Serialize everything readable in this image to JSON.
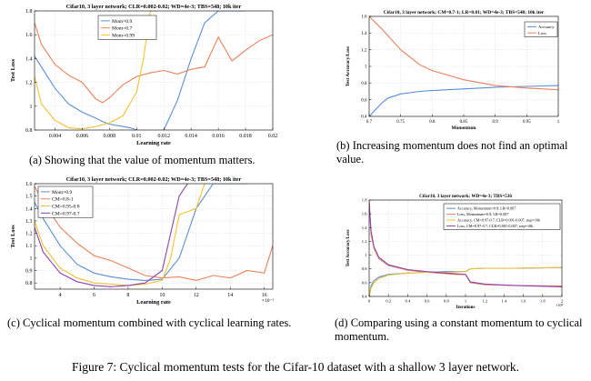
{
  "figure_caption": "Figure 7: Cyclical momentum tests for the Cifar-10 dataset with a shallow 3 layer network.",
  "captions": {
    "a": "(a) Showing that the value of momentum matters.",
    "b": "(b) Increasing momentum does not find an optimal value.",
    "c": "(c) Cyclical momentum combined with cyclical learning rates.",
    "d": "(d) Comparing using a constant momentum to cyclical momentum."
  },
  "chart_data": [
    {
      "id": "a",
      "type": "line",
      "title": "Cifar10, 3 layer network; CLR=0.002-0.02; WD=4e-3; TBS=548; 10k iter",
      "xlabel": "Learning rate",
      "ylabel": "Test Loss",
      "xlim": [
        0.0025,
        0.02
      ],
      "ylim": [
        0.8,
        1.8
      ],
      "xticks": [
        0.004,
        0.006,
        0.008,
        0.01,
        0.012,
        0.014,
        0.016,
        0.018,
        0.02
      ],
      "xtick_labels": [
        "0.004",
        "0.006",
        "0.008",
        "0.01",
        "0.012",
        "0.014",
        "0.016",
        "0.018",
        "0.02"
      ],
      "yticks": [
        0.8,
        1.0,
        1.2,
        1.4,
        1.6,
        1.8
      ],
      "ytick_labels": [
        "0.8",
        "1",
        "1.2",
        "1.4",
        "1.6",
        "1.8"
      ],
      "grid": true,
      "legend": "top-center",
      "colors": [
        "#5b8fd6",
        "#e8825a",
        "#f1c232"
      ],
      "series": [
        {
          "name": "Mom=0.9",
          "x": [
            0.0025,
            0.003,
            0.004,
            0.005,
            0.006,
            0.007,
            0.0075,
            0.008,
            0.009,
            0.0095,
            0.01,
            0.0105,
            0.011,
            0.012,
            0.013,
            0.014,
            0.015,
            0.016,
            0.017,
            0.018
          ],
          "y": [
            1.42,
            1.33,
            1.15,
            1.02,
            0.95,
            0.9,
            0.87,
            0.85,
            0.83,
            0.82,
            0.8,
            0.79,
            0.79,
            0.8,
            1.05,
            1.4,
            1.7,
            1.8,
            1.8,
            1.8
          ]
        },
        {
          "name": "Mom=0.7",
          "x": [
            0.0025,
            0.003,
            0.004,
            0.005,
            0.006,
            0.007,
            0.0075,
            0.008,
            0.009,
            0.01,
            0.011,
            0.012,
            0.013,
            0.014,
            0.015,
            0.016,
            0.017,
            0.018,
            0.019,
            0.02
          ],
          "y": [
            1.7,
            1.52,
            1.35,
            1.26,
            1.2,
            1.06,
            1.03,
            1.07,
            1.18,
            1.25,
            1.28,
            1.3,
            1.27,
            1.31,
            1.33,
            1.58,
            1.38,
            1.47,
            1.55,
            1.6
          ]
        },
        {
          "name": "Mom=0.99",
          "x": [
            0.0025,
            0.003,
            0.004,
            0.005,
            0.006,
            0.007,
            0.008,
            0.009,
            0.01,
            0.0105,
            0.011,
            0.0115
          ],
          "y": [
            1.25,
            1.02,
            0.88,
            0.82,
            0.81,
            0.83,
            0.86,
            0.92,
            1.12,
            1.4,
            1.8,
            1.8
          ]
        }
      ]
    },
    {
      "id": "b",
      "type": "line",
      "title": "Cifar10, 3 layer network; CM=0.7-1; LR=0.01; WD=4e-3; TBS=548; 10k iter",
      "xlabel": "Momentum",
      "ylabel": "Test Accuracy/Loss",
      "xlim": [
        0.7,
        1.0
      ],
      "ylim": [
        0.4,
        1.6
      ],
      "xticks": [
        0.7,
        0.75,
        0.8,
        0.85,
        0.9,
        0.95,
        1.0
      ],
      "xtick_labels": [
        "0.7",
        "0.75",
        "0.8",
        "0.85",
        "0.9",
        "0.95",
        "1"
      ],
      "yticks": [
        0.4,
        0.6,
        0.8,
        1.0,
        1.2,
        1.4,
        1.6
      ],
      "ytick_labels": [
        "0.4",
        "0.6",
        "0.8",
        "1",
        "1.2",
        "1.4",
        "1.6"
      ],
      "grid": true,
      "legend": "top-right",
      "colors": [
        "#5b8fd6",
        "#e8825a"
      ],
      "series": [
        {
          "name": "Accuracy",
          "x": [
            0.7,
            0.71,
            0.72,
            0.73,
            0.75,
            0.78,
            0.8,
            0.85,
            0.9,
            0.95,
            1.0
          ],
          "y": [
            0.4,
            0.48,
            0.56,
            0.62,
            0.67,
            0.7,
            0.71,
            0.73,
            0.75,
            0.76,
            0.77
          ]
        },
        {
          "name": "Loss",
          "x": [
            0.7,
            0.72,
            0.75,
            0.78,
            0.8,
            0.85,
            0.9,
            0.95,
            1.0
          ],
          "y": [
            1.6,
            1.45,
            1.2,
            1.02,
            0.95,
            0.84,
            0.77,
            0.74,
            0.72
          ]
        }
      ]
    },
    {
      "id": "c",
      "type": "line",
      "title": "Cifar10, 3 layer network; CLR=0.002-0.02; WD=4e-3; TBS=548; 10k iter",
      "xlabel": "Learning rate",
      "ylabel": "Test Loss",
      "xlim": [
        2.5,
        16.5
      ],
      "ylim": [
        0.75,
        1.6
      ],
      "xticks": [
        4,
        6,
        8,
        10,
        12,
        14,
        16
      ],
      "xtick_labels": [
        "4",
        "6",
        "8",
        "10",
        "12",
        "14",
        "16"
      ],
      "x_multiplier_label": "×10⁻³",
      "yticks": [
        0.8,
        0.9,
        1.0,
        1.1,
        1.2,
        1.3,
        1.4,
        1.5,
        1.6
      ],
      "ytick_labels": [
        "0.8",
        "0.9",
        "1",
        "1.1",
        "1.2",
        "1.3",
        "1.4",
        "1.5",
        "1.6"
      ],
      "grid": true,
      "legend": "top-left",
      "colors": [
        "#5b8fd6",
        "#e8825a",
        "#f1c232",
        "#8e44ad"
      ],
      "series": [
        {
          "name": "Mom=0.9",
          "x": [
            2.5,
            3,
            4,
            5,
            6,
            7,
            8,
            9,
            10,
            11,
            12,
            13,
            14,
            15
          ],
          "y": [
            1.45,
            1.32,
            1.1,
            0.95,
            0.88,
            0.85,
            0.83,
            0.82,
            0.83,
            1.0,
            1.4,
            1.6,
            1.6,
            1.6
          ]
        },
        {
          "name": "CM=0.8-1",
          "x": [
            2.5,
            3,
            4,
            5,
            6,
            7,
            8,
            9,
            10,
            11,
            12,
            13,
            14,
            15,
            16,
            16.5
          ],
          "y": [
            1.58,
            1.45,
            1.25,
            1.12,
            1.02,
            0.98,
            0.92,
            0.86,
            0.84,
            0.85,
            0.82,
            0.86,
            0.84,
            0.9,
            0.88,
            1.1
          ]
        },
        {
          "name": "CM=0.95-0.8",
          "x": [
            2.5,
            3,
            4,
            5,
            6,
            7,
            8,
            9,
            10,
            10.5,
            11,
            12,
            12.5
          ],
          "y": [
            1.3,
            1.1,
            0.92,
            0.84,
            0.8,
            0.79,
            0.78,
            0.79,
            0.82,
            1.0,
            1.35,
            1.4,
            1.6
          ]
        },
        {
          "name": "CM=0.97-0.7",
          "x": [
            2.5,
            3,
            4,
            5,
            6,
            7,
            8,
            9,
            10,
            10.5,
            11,
            11.5
          ],
          "y": [
            1.25,
            1.05,
            0.88,
            0.81,
            0.78,
            0.77,
            0.78,
            0.8,
            0.9,
            1.2,
            1.5,
            1.6
          ]
        }
      ]
    },
    {
      "id": "d",
      "type": "line",
      "title": "Cifar10, 3 layer network; WD=4e-3; TBS=536",
      "xlabel": "Iterations",
      "ylabel": "Test Accuracy/Loss",
      "xlim": [
        0,
        2
      ],
      "ylim": [
        0.4,
        1.8
      ],
      "xticks": [
        0,
        0.2,
        0.4,
        0.6,
        0.8,
        1.0,
        1.2,
        1.4,
        1.6,
        1.8,
        2.0
      ],
      "xtick_labels": [
        "0",
        "0.2",
        "0.4",
        "0.6",
        "0.8",
        "1",
        "1.2",
        "1.4",
        "1.6",
        "1.8",
        "2"
      ],
      "x_multiplier_label": "×10⁴",
      "yticks": [
        0.4,
        0.6,
        0.8,
        1.0,
        1.2,
        1.4,
        1.6,
        1.8
      ],
      "ytick_labels": [
        "0.4",
        "0.6",
        "0.8",
        "1",
        "1.2",
        "1.4",
        "1.6",
        "1.8"
      ],
      "grid": true,
      "legend": "top-right",
      "colors": [
        "#5b8fd6",
        "#e8825a",
        "#f1c232",
        "#8e44ad"
      ],
      "series": [
        {
          "name": "Accuracy, Momentum=0.9; LR=0.007",
          "x": [
            0,
            0.02,
            0.05,
            0.1,
            0.2,
            0.4,
            0.6,
            0.8,
            1.0,
            1.05,
            1.2,
            1.5,
            2.0
          ],
          "y": [
            0.4,
            0.55,
            0.63,
            0.68,
            0.72,
            0.74,
            0.75,
            0.76,
            0.76,
            0.8,
            0.81,
            0.81,
            0.82
          ]
        },
        {
          "name": "Loss, Momentum=0.9; LR=0.007",
          "x": [
            0,
            0.02,
            0.05,
            0.1,
            0.2,
            0.4,
            0.6,
            0.8,
            0.9,
            1.0,
            1.05,
            1.2,
            1.5,
            2.0
          ],
          "y": [
            1.8,
            1.3,
            1.1,
            0.95,
            0.85,
            0.78,
            0.75,
            0.73,
            0.72,
            0.72,
            0.6,
            0.57,
            0.56,
            0.55
          ]
        },
        {
          "name": "Accuracy, CM=0.97-0.7; CLR=0.001-0.007, step=10k",
          "x": [
            0,
            0.02,
            0.05,
            0.1,
            0.2,
            0.4,
            0.6,
            0.8,
            1.0,
            1.05,
            1.2,
            1.5,
            2.0
          ],
          "y": [
            0.4,
            0.52,
            0.6,
            0.66,
            0.71,
            0.74,
            0.75,
            0.75,
            0.76,
            0.8,
            0.81,
            0.81,
            0.82
          ]
        },
        {
          "name": "Loss, CM=0.97-0.7; CLR=0.001-0.007, step=10k",
          "x": [
            0,
            0.02,
            0.05,
            0.1,
            0.2,
            0.4,
            0.6,
            0.8,
            0.9,
            1.0,
            1.05,
            1.2,
            1.5,
            2.0
          ],
          "y": [
            1.75,
            1.35,
            1.12,
            0.97,
            0.86,
            0.79,
            0.76,
            0.74,
            0.73,
            0.72,
            0.61,
            0.58,
            0.56,
            0.54
          ]
        }
      ]
    }
  ]
}
